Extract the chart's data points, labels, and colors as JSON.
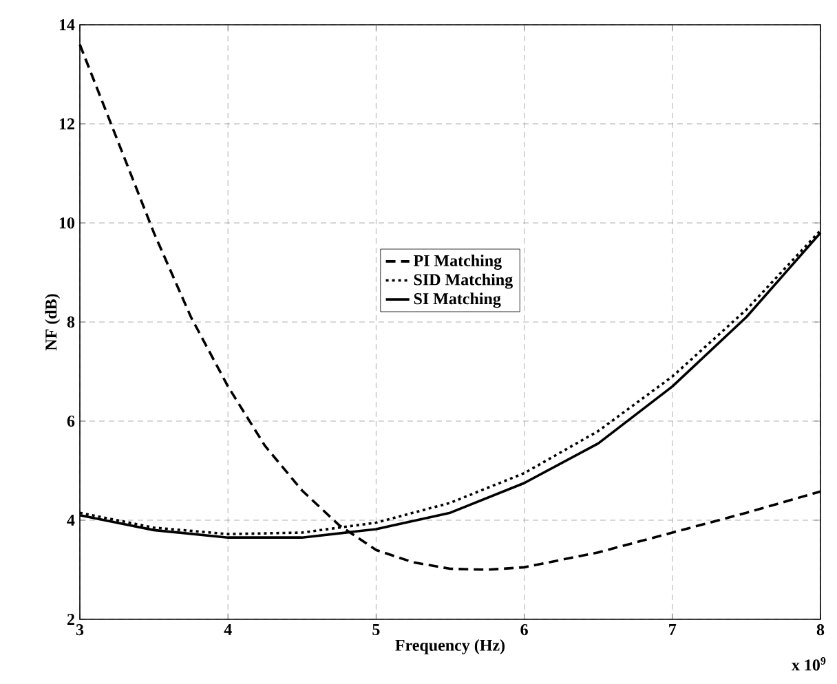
{
  "chart_data": {
    "type": "line",
    "xlabel": "Frequency (Hz)",
    "ylabel": "NF (dB)",
    "annotations": [
      "x 10$^{9}$"
    ],
    "xlim": [
      3,
      8
    ],
    "ylim": [
      2,
      14
    ],
    "xticks": [
      3,
      4,
      5,
      6,
      7,
      8
    ],
    "yticks": [
      2,
      4,
      6,
      8,
      10,
      12,
      14
    ],
    "grid": true,
    "legend": "center",
    "marker": "none",
    "series": [
      {
        "name": "PI Matching",
        "color": "#000000",
        "line_style": "dashed",
        "x": [
          3,
          3.25,
          3.5,
          3.75,
          4,
          4.25,
          4.5,
          4.75,
          5,
          5.25,
          5.5,
          5.75,
          6,
          6.5,
          7,
          7.5,
          8
        ],
        "values": [
          13.6,
          11.7,
          9.8,
          8.1,
          6.7,
          5.5,
          4.6,
          3.9,
          3.4,
          3.15,
          3.02,
          3.0,
          3.05,
          3.35,
          3.75,
          4.15,
          4.58
        ]
      },
      {
        "name": "SID Matching",
        "color": "#000000",
        "line_style": "dotted",
        "x": [
          3,
          3.5,
          4,
          4.5,
          5,
          5.5,
          6,
          6.5,
          7,
          7.5,
          8
        ],
        "values": [
          4.15,
          3.85,
          3.72,
          3.75,
          3.95,
          4.35,
          4.95,
          5.8,
          6.9,
          8.25,
          9.85
        ]
      },
      {
        "name": "SI Matching",
        "color": "#000000",
        "line_style": "solid",
        "x": [
          3,
          3.5,
          4,
          4.5,
          5,
          5.5,
          6,
          6.5,
          7,
          7.5,
          8
        ],
        "values": [
          4.1,
          3.8,
          3.65,
          3.65,
          3.82,
          4.15,
          4.75,
          5.55,
          6.7,
          8.1,
          9.8
        ]
      }
    ]
  }
}
